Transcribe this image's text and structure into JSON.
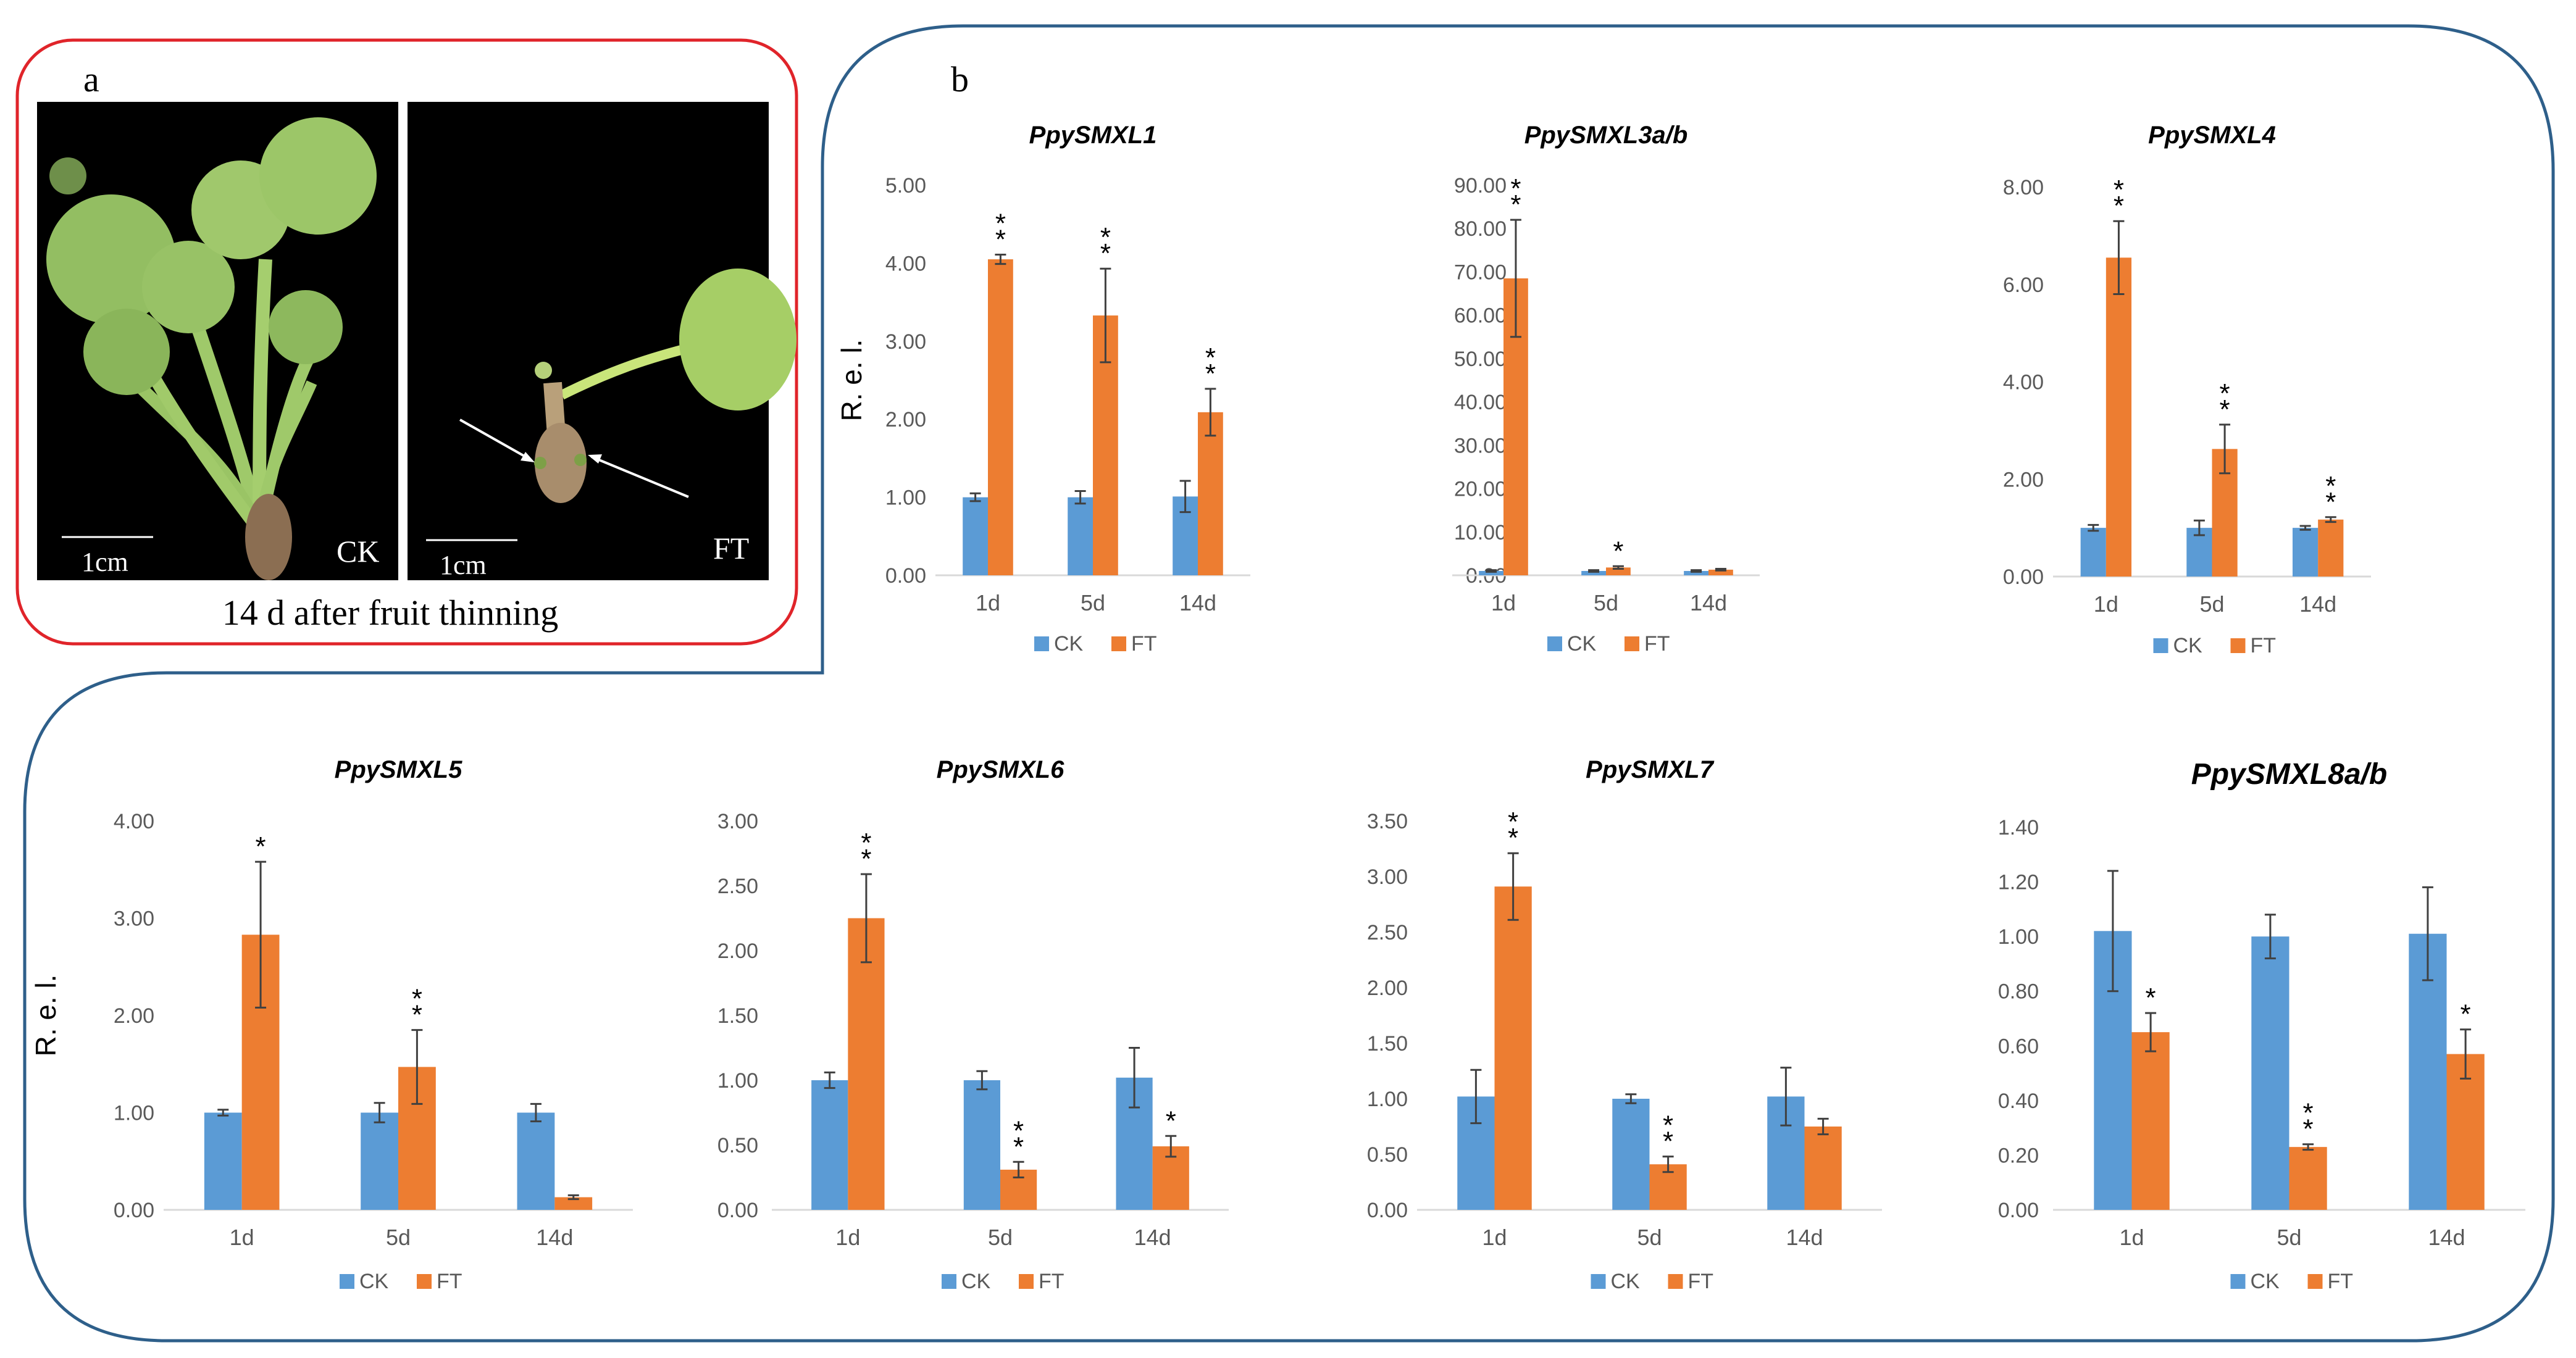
{
  "panel_a": {
    "letter": "a",
    "caption": "14 d after fruit thinning",
    "photo_ck": {
      "label": "CK",
      "scale_bar": "1cm"
    },
    "photo_ft": {
      "label": "FT",
      "scale_bar": "1cm"
    }
  },
  "panel_b": {
    "letter": "b"
  },
  "colors": {
    "CK": "#5B9BD5",
    "FT": "#ED7D31",
    "frame_a": "#E0242A",
    "frame_b": "#2E5F8A"
  },
  "chart_data": [
    {
      "type": "bar",
      "title": "PpySMXL1",
      "ylabel": "R. e. l.",
      "categories": [
        "1d",
        "5d",
        "14d"
      ],
      "ylim": [
        0,
        5
      ],
      "yticks": [
        "0.00",
        "1.00",
        "2.00",
        "3.00",
        "4.00",
        "5.00"
      ],
      "series": [
        {
          "name": "CK",
          "values": [
            1.0,
            1.0,
            1.01
          ],
          "errors": [
            0.05,
            0.08,
            0.2
          ]
        },
        {
          "name": "FT",
          "values": [
            4.05,
            3.33,
            2.09
          ],
          "errors": [
            0.06,
            0.6,
            0.3
          ]
        }
      ],
      "significance": [
        "**",
        "**",
        "**"
      ]
    },
    {
      "type": "bar",
      "title": "PpySMXL3a/b",
      "ylabel": "",
      "categories": [
        "1d",
        "5d",
        "14d"
      ],
      "ylim": [
        0,
        90
      ],
      "yticks": [
        "0.00",
        "10.00",
        "20.00",
        "30.00",
        "40.00",
        "50.00",
        "60.00",
        "70.00",
        "80.00",
        "90.00"
      ],
      "series": [
        {
          "name": "CK",
          "values": [
            1.0,
            1.0,
            1.0
          ],
          "errors": [
            0.2,
            0.2,
            0.2
          ]
        },
        {
          "name": "FT",
          "values": [
            68.5,
            1.8,
            1.3
          ],
          "errors": [
            13.5,
            0.3,
            0.2
          ]
        }
      ],
      "significance": [
        "**",
        "*",
        ""
      ]
    },
    {
      "type": "bar",
      "title": "PpySMXL4",
      "ylabel": "",
      "categories": [
        "1d",
        "5d",
        "14d"
      ],
      "ylim": [
        0,
        8
      ],
      "yticks": [
        "0.00",
        "2.00",
        "4.00",
        "6.00",
        "8.00"
      ],
      "series": [
        {
          "name": "CK",
          "values": [
            1.0,
            1.0,
            1.0
          ],
          "errors": [
            0.06,
            0.15,
            0.04
          ]
        },
        {
          "name": "FT",
          "values": [
            6.55,
            2.62,
            1.17
          ],
          "errors": [
            0.75,
            0.5,
            0.05
          ]
        }
      ],
      "significance": [
        "**",
        "**",
        "**"
      ]
    },
    {
      "type": "bar",
      "title": "PpySMXL5",
      "ylabel": "R. e. l.",
      "categories": [
        "1d",
        "5d",
        "14d"
      ],
      "ylim": [
        0,
        4
      ],
      "yticks": [
        "0.00",
        "1.00",
        "2.00",
        "3.00",
        "4.00"
      ],
      "series": [
        {
          "name": "CK",
          "values": [
            1.0,
            1.0,
            1.0
          ],
          "errors": [
            0.03,
            0.1,
            0.09
          ]
        },
        {
          "name": "FT",
          "values": [
            2.83,
            1.47,
            0.13
          ],
          "errors": [
            0.75,
            0.38,
            0.02
          ]
        }
      ],
      "significance": [
        "*",
        "**",
        ""
      ]
    },
    {
      "type": "bar",
      "title": "PpySMXL6",
      "ylabel": "",
      "categories": [
        "1d",
        "5d",
        "14d"
      ],
      "ylim": [
        0,
        3
      ],
      "yticks": [
        "0.00",
        "0.50",
        "1.00",
        "1.50",
        "2.00",
        "2.50",
        "3.00"
      ],
      "series": [
        {
          "name": "CK",
          "values": [
            1.0,
            1.0,
            1.02
          ],
          "errors": [
            0.06,
            0.07,
            0.23
          ]
        },
        {
          "name": "FT",
          "values": [
            2.25,
            0.31,
            0.49
          ],
          "errors": [
            0.34,
            0.06,
            0.08
          ]
        }
      ],
      "significance": [
        "**",
        "**",
        "*"
      ]
    },
    {
      "type": "bar",
      "title": "PpySMXL7",
      "ylabel": "",
      "categories": [
        "1d",
        "5d",
        "14d"
      ],
      "ylim": [
        0,
        3.5
      ],
      "yticks": [
        "0.00",
        "0.50",
        "1.00",
        "1.50",
        "2.00",
        "2.50",
        "3.00",
        "3.50"
      ],
      "series": [
        {
          "name": "CK",
          "values": [
            1.02,
            1.0,
            1.02
          ],
          "errors": [
            0.24,
            0.04,
            0.26
          ]
        },
        {
          "name": "FT",
          "values": [
            2.91,
            0.41,
            0.75
          ],
          "errors": [
            0.3,
            0.07,
            0.07
          ]
        }
      ],
      "significance": [
        "**",
        "**",
        ""
      ]
    },
    {
      "type": "bar",
      "title": "PpySMXL8a/b",
      "ylabel": "",
      "categories": [
        "1d",
        "5d",
        "14d"
      ],
      "ylim": [
        0,
        1.4
      ],
      "yticks": [
        "0.00",
        "0.20",
        "0.40",
        "0.60",
        "0.80",
        "1.00",
        "1.20",
        "1.40"
      ],
      "series": [
        {
          "name": "CK",
          "values": [
            1.02,
            1.0,
            1.01
          ],
          "errors": [
            0.22,
            0.08,
            0.17
          ]
        },
        {
          "name": "FT",
          "values": [
            0.65,
            0.23,
            0.57
          ],
          "errors": [
            0.07,
            0.01,
            0.09
          ]
        }
      ],
      "significance": [
        "*",
        "**",
        "*"
      ]
    }
  ]
}
